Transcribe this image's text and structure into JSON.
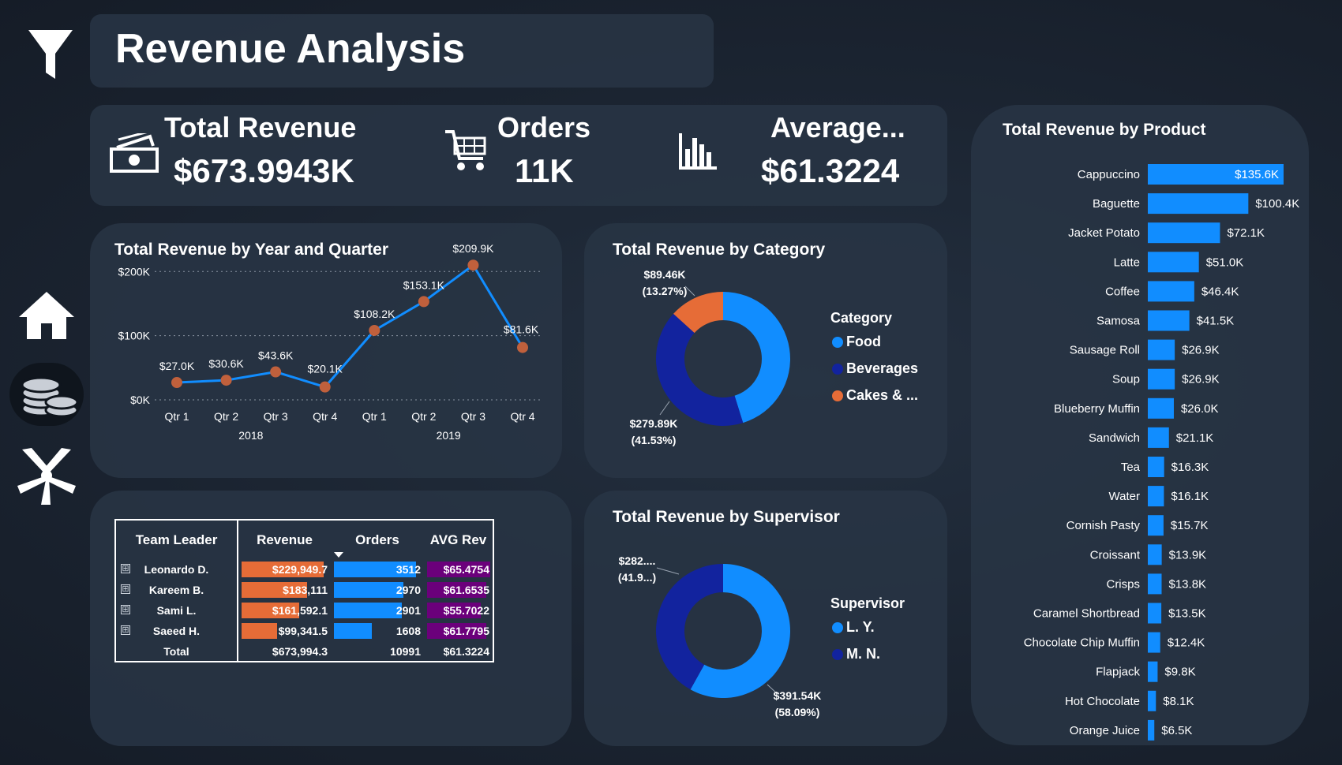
{
  "header": {
    "title": "Revenue Analysis"
  },
  "nav": {
    "icons": [
      "filter-icon",
      "home-icon",
      "coins-icon",
      "team-hands-icon"
    ]
  },
  "kpis": {
    "revenue": {
      "label": "Total Revenue",
      "value": "$673.9943K",
      "icon": "money-icon"
    },
    "orders": {
      "label": "Orders",
      "value": "11K",
      "icon": "cart-icon"
    },
    "average": {
      "label": "Average...",
      "value": "$61.3224",
      "icon": "bar-chart-icon"
    }
  },
  "colors": {
    "accent": "#118dff",
    "orange": "#e66c37",
    "navy": "#12239e",
    "purple": "#6b007b",
    "marker": "#c0603c"
  },
  "chart_data": [
    {
      "type": "line",
      "title": "Total Revenue by Year and Quarter",
      "categories": [
        "Qtr 1",
        "Qtr 2",
        "Qtr 3",
        "Qtr 4",
        "Qtr 1",
        "Qtr 2",
        "Qtr 3",
        "Qtr 4"
      ],
      "groups": [
        "2018",
        "2019"
      ],
      "values": [
        27.0,
        30.6,
        43.6,
        20.1,
        108.2,
        153.1,
        209.9,
        81.6
      ],
      "data_labels": [
        "$27.0K",
        "$30.6K",
        "$43.6K",
        "$20.1K",
        "$108.2K",
        "$153.1K",
        "$209.9K",
        "$81.6K"
      ],
      "yticks": [
        "$0K",
        "$100K",
        "$200K"
      ],
      "ylim": [
        0,
        220
      ],
      "grid": true
    },
    {
      "type": "pie",
      "title": "Total Revenue by Category",
      "legend_title": "Category",
      "labels": [
        "Food",
        "Beverages",
        "Cakes & ..."
      ],
      "values": [
        304.64,
        279.89,
        89.46
      ],
      "data_labels": [
        {
          "value": "",
          "pct": ""
        },
        {
          "value": "$279.89K",
          "pct": "(41.53%)"
        },
        {
          "value": "$89.46K",
          "pct": "(13.27%)"
        }
      ],
      "legend_placement": "right"
    },
    {
      "type": "pie",
      "title": "Total Revenue by Supervisor",
      "legend_title": "Supervisor",
      "labels": [
        "L. Y.",
        "M. N."
      ],
      "values": [
        391.54,
        282.45
      ],
      "data_labels": [
        {
          "value": "$391.54K",
          "pct": "(58.09%)"
        },
        {
          "value": "$282....",
          "pct": "(41.9...)"
        }
      ],
      "legend_placement": "right"
    },
    {
      "type": "bar",
      "title": "Total Revenue by Product",
      "orientation": "horizontal",
      "categories": [
        "Cappuccino",
        "Baguette",
        "Jacket Potato",
        "Latte",
        "Coffee",
        "Samosa",
        "Sausage Roll",
        "Soup",
        "Blueberry Muffin",
        "Sandwich",
        "Tea",
        "Water",
        "Cornish Pasty",
        "Croissant",
        "Crisps",
        "Caramel Shortbread",
        "Chocolate Chip Muffin",
        "Flapjack",
        "Hot Chocolate",
        "Orange Juice"
      ],
      "values": [
        135.6,
        100.4,
        72.1,
        51.0,
        46.4,
        41.5,
        26.9,
        26.9,
        26.0,
        21.1,
        16.3,
        16.1,
        15.7,
        13.9,
        13.8,
        13.5,
        12.4,
        9.8,
        8.1,
        6.5
      ],
      "data_labels": [
        "$135.6K",
        "$100.4K",
        "$72.1K",
        "$51.0K",
        "$46.4K",
        "$41.5K",
        "$26.9K",
        "$26.9K",
        "$26.0K",
        "$21.1K",
        "$16.3K",
        "$16.1K",
        "$15.7K",
        "$13.9K",
        "$13.8K",
        "$13.5K",
        "$12.4K",
        "$9.8K",
        "$8.1K",
        "$6.5K"
      ]
    },
    {
      "type": "table",
      "columns": [
        "Team Leader",
        "Revenue",
        "Orders",
        "AVG Rev"
      ],
      "rows": [
        {
          "leader": "Leonardo D.",
          "revenue": "$229,949.7",
          "orders": "3512",
          "avg": "$65.4754",
          "revenue_value": 229949.7,
          "orders_value": 3512,
          "avg_value": 65.4754
        },
        {
          "leader": "Kareem B.",
          "revenue": "$183,111",
          "orders": "2970",
          "avg": "$61.6535",
          "revenue_value": 183111,
          "orders_value": 2970,
          "avg_value": 61.6535
        },
        {
          "leader": "Sami L.",
          "revenue": "$161,592.1",
          "orders": "2901",
          "avg": "$55.7022",
          "revenue_value": 161592.1,
          "orders_value": 2901,
          "avg_value": 55.7022
        },
        {
          "leader": "Saeed H.",
          "revenue": "$99,341.5",
          "orders": "1608",
          "avg": "$61.7795",
          "revenue_value": 99341.5,
          "orders_value": 1608,
          "avg_value": 61.7795
        }
      ],
      "total": {
        "leader": "Total",
        "revenue": "$673,994.3",
        "orders": "10991",
        "avg": "$61.3224"
      },
      "expand_symbol": "⊞"
    }
  ]
}
